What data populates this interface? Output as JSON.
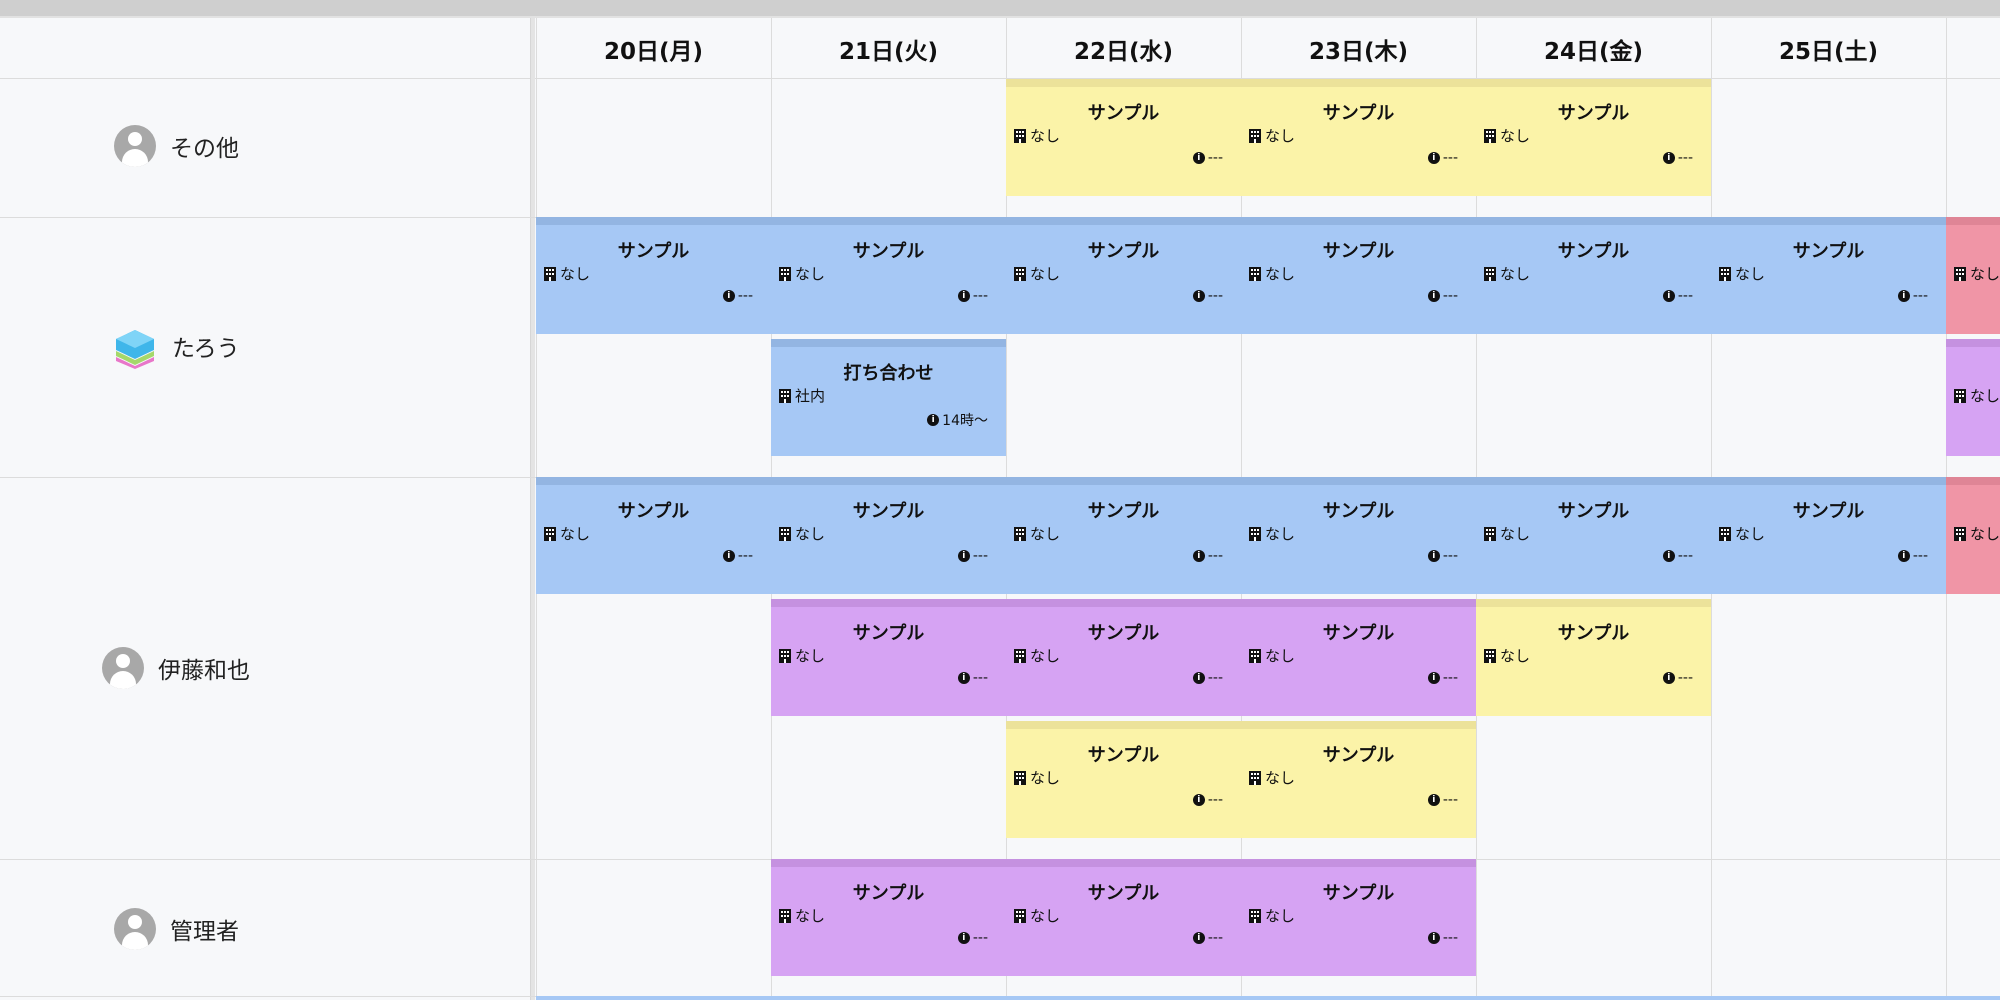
{
  "days": [
    "20日(月)",
    "21日(火)",
    "22日(水)",
    "23日(木)",
    "24日(金)",
    "25日(土)"
  ],
  "people": [
    {
      "name": "その他",
      "avatar": "default-avatar-icon"
    },
    {
      "name": "たろう",
      "avatar": "layered-cube-icon"
    },
    {
      "name": "伊藤和也",
      "avatar": "default-avatar-icon"
    },
    {
      "name": "管理者",
      "avatar": "default-avatar-icon"
    }
  ],
  "events": {
    "sono_yellow": {
      "title": "サンプル",
      "location": "なし",
      "info": "---"
    },
    "taro_blue": {
      "title": "サンプル",
      "location": "なし",
      "info": "---"
    },
    "taro_pink": {
      "location": "なし"
    },
    "taro_meeting": {
      "title": "打ち合わせ",
      "location": "社内",
      "info": "14時〜"
    },
    "taro_purple": {
      "location": "なし"
    },
    "ito_blue": {
      "title": "サンプル",
      "location": "なし",
      "info": "---"
    },
    "ito_pink": {
      "location": "なし"
    },
    "ito_purple": {
      "title": "サンプル",
      "location": "なし",
      "info": "---"
    },
    "ito_yellow1": {
      "title": "サンプル",
      "location": "なし",
      "info": "---"
    },
    "ito_yellow2": {
      "title": "サンプル",
      "location": "なし",
      "info": "---"
    },
    "admin_purple": {
      "title": "サンプル",
      "location": "なし",
      "info": "---"
    }
  },
  "colors": {
    "blue": "#a6c8f5",
    "yellow": "#fbf3a8",
    "purple": "#d6a3f3",
    "pink": "#f095a6"
  }
}
